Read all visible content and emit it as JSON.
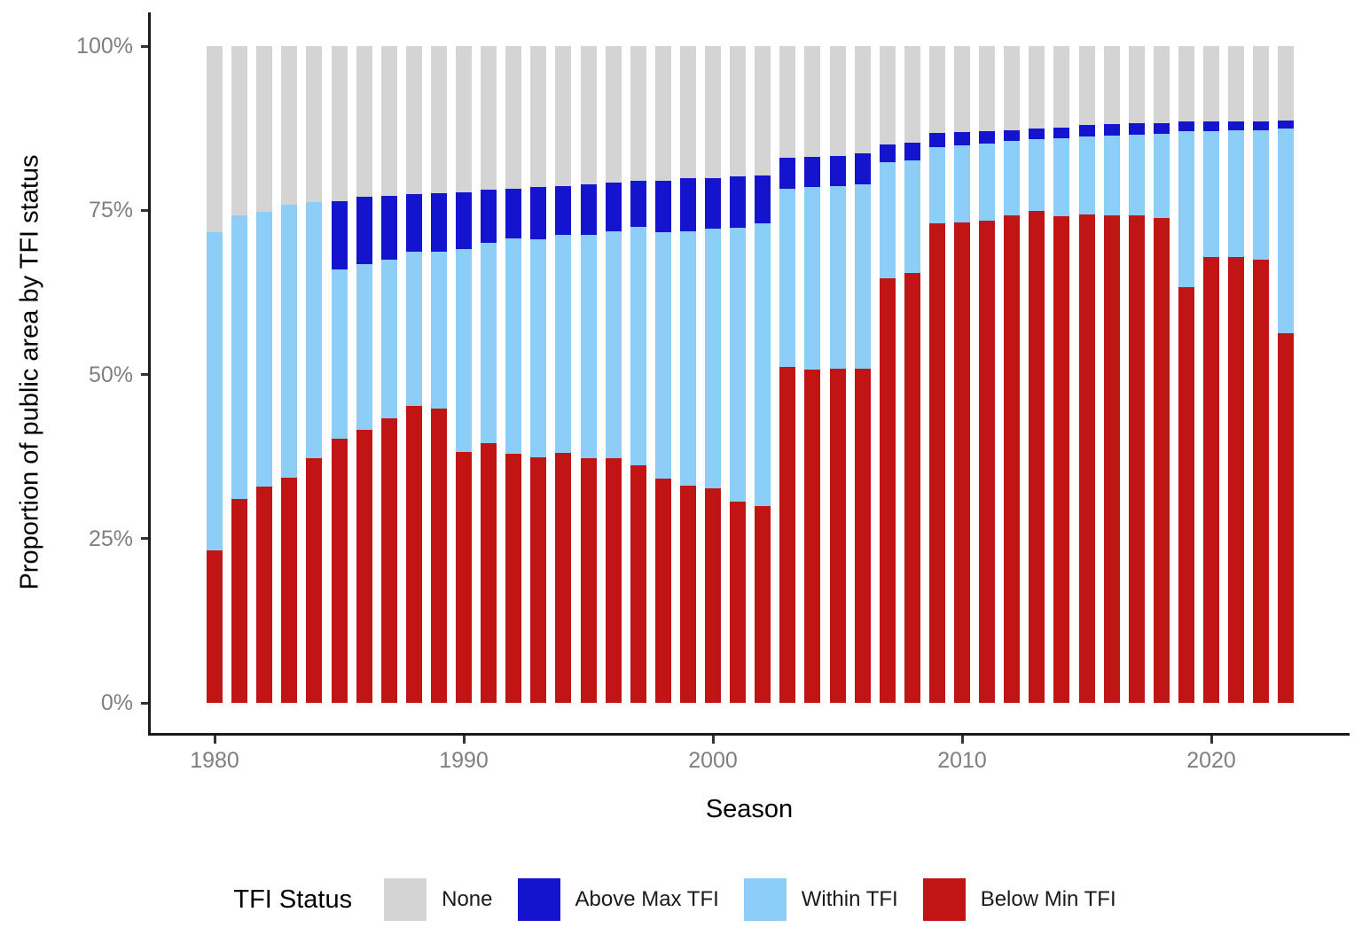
{
  "chart_data": {
    "type": "bar",
    "stacked": true,
    "title": "",
    "xlabel": "Season",
    "ylabel": "Proportion of public area by TFI status",
    "ylim": [
      0,
      100
    ],
    "grid": false,
    "legend_position": "bottom",
    "x": [
      1980,
      1981,
      1982,
      1983,
      1984,
      1985,
      1986,
      1987,
      1988,
      1989,
      1990,
      1991,
      1992,
      1993,
      1994,
      1995,
      1996,
      1997,
      1998,
      1999,
      2000,
      2001,
      2002,
      2003,
      2004,
      2005,
      2006,
      2007,
      2008,
      2009,
      2010,
      2011,
      2012,
      2013,
      2014,
      2015,
      2016,
      2017,
      2018,
      2019,
      2020,
      2021,
      2022,
      2023
    ],
    "series": [
      {
        "name": "Below Min TFI",
        "color": "#c11414",
        "values": [
          23.2,
          31.1,
          32.9,
          34.3,
          37.3,
          40.2,
          41.5,
          43.3,
          45.2,
          44.8,
          38.2,
          39.6,
          37.9,
          37.4,
          38.0,
          37.2,
          37.3,
          36.2,
          34.2,
          33.0,
          32.6,
          30.6,
          30.0,
          51.2,
          50.7,
          50.9,
          50.9,
          64.7,
          65.5,
          73.0,
          73.1,
          73.4,
          74.2,
          74.9,
          74.1,
          74.4,
          74.2,
          74.2,
          73.8,
          63.3,
          67.9,
          67.9,
          67.5,
          56.3
        ]
      },
      {
        "name": "Within TFI",
        "color": "#8ccef8",
        "values": [
          48.4,
          43.1,
          41.8,
          41.6,
          39.0,
          25.8,
          25.3,
          24.2,
          23.5,
          23.9,
          30.9,
          30.5,
          32.8,
          33.2,
          33.2,
          34.1,
          34.5,
          36.3,
          37.4,
          38.8,
          39.6,
          41.8,
          43.0,
          27.1,
          27.9,
          27.8,
          28.1,
          17.6,
          17.1,
          11.6,
          11.8,
          11.8,
          11.3,
          10.9,
          11.9,
          11.9,
          12.2,
          12.3,
          12.8,
          23.8,
          19.2,
          19.3,
          19.7,
          31.1
        ]
      },
      {
        "name": "Above Max TFI",
        "color": "#1414ce",
        "values": [
          0,
          0,
          0,
          0,
          0,
          10.4,
          10.2,
          9.7,
          8.8,
          8.9,
          8.6,
          8.1,
          7.6,
          7.9,
          7.5,
          7.7,
          7.4,
          7.0,
          7.9,
          8.1,
          7.7,
          7.7,
          7.3,
          4.7,
          4.5,
          4.6,
          4.7,
          2.7,
          2.7,
          2.2,
          2.0,
          1.9,
          1.7,
          1.6,
          1.6,
          1.7,
          1.7,
          1.7,
          1.7,
          1.4,
          1.4,
          1.3,
          1.3,
          1.2
        ]
      },
      {
        "name": "None",
        "color": "#d4d4d4",
        "values": [
          28.4,
          25.8,
          25.3,
          24.1,
          23.7,
          23.6,
          23.0,
          22.8,
          22.5,
          22.4,
          22.3,
          21.8,
          21.7,
          21.5,
          21.3,
          21.0,
          20.8,
          20.5,
          20.5,
          20.1,
          20.1,
          19.9,
          19.7,
          17.0,
          16.9,
          16.7,
          16.3,
          15.0,
          14.7,
          13.2,
          13.1,
          12.9,
          12.8,
          12.6,
          12.4,
          12.0,
          11.9,
          11.8,
          11.7,
          11.5,
          11.5,
          11.5,
          11.5,
          11.4
        ]
      }
    ],
    "y_axis": {
      "ticks": [
        {
          "value": 0,
          "label": "0%"
        },
        {
          "value": 25,
          "label": "25%"
        },
        {
          "value": 50,
          "label": "50%"
        },
        {
          "value": 75,
          "label": "75%"
        },
        {
          "value": 100,
          "label": "100%"
        }
      ]
    },
    "x_axis": {
      "ticks": [
        1980,
        1990,
        2000,
        2010,
        2020
      ]
    }
  },
  "legend": {
    "title": "TFI Status",
    "items": [
      {
        "label": "None",
        "color": "#d4d4d4",
        "key": "none"
      },
      {
        "label": "Above Max TFI",
        "color": "#1414ce",
        "key": "above-max-tfi"
      },
      {
        "label": "Within TFI",
        "color": "#8ccef8",
        "key": "within-tfi"
      },
      {
        "label": "Below Min TFI",
        "color": "#c11414",
        "key": "below-min-tfi"
      }
    ]
  }
}
